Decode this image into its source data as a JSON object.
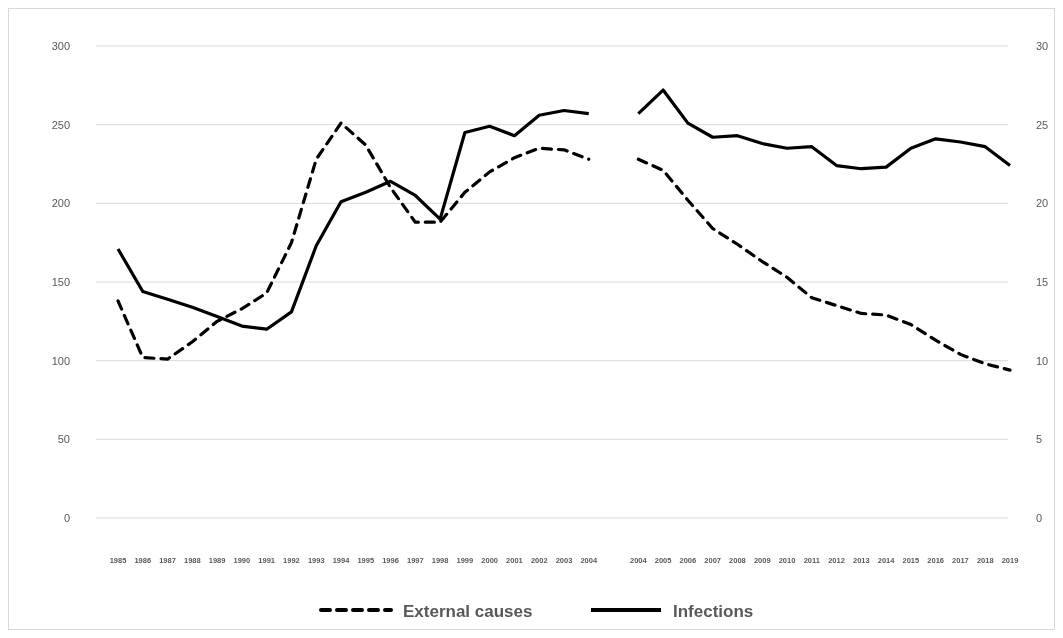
{
  "chart_data": {
    "type": "line",
    "categories": [
      "1985",
      "1986",
      "1987",
      "1988",
      "1989",
      "1990",
      "1991",
      "1992",
      "1993",
      "1994",
      "1995",
      "1996",
      "1997",
      "1998",
      "1999",
      "2000",
      "2001",
      "2002",
      "2003",
      "2004",
      null,
      "2004",
      "2005",
      "2006",
      "2007",
      "2008",
      "2009",
      "2010",
      "2011",
      "2012",
      "2013",
      "2014",
      "2015",
      "2016",
      "2017",
      "2018",
      "2019"
    ],
    "series": [
      {
        "name": "External causes",
        "color": "#000000",
        "line_style": "dashed",
        "values": [
          138,
          102,
          101,
          112,
          125,
          133,
          143,
          175,
          228,
          251,
          237,
          210,
          188,
          188,
          207,
          220,
          229,
          235,
          234,
          228,
          null,
          228,
          221,
          202,
          184,
          174,
          163,
          153,
          140,
          135,
          130,
          129,
          123,
          113,
          104,
          98,
          94
        ]
      },
      {
        "name": "Infections",
        "color": "#000000",
        "line_style": "solid",
        "axis": "y2",
        "values": [
          17.1,
          14.4,
          13.9,
          13.4,
          12.8,
          12.2,
          12.0,
          13.1,
          17.3,
          20.1,
          20.7,
          21.4,
          20.5,
          19.0,
          24.5,
          24.9,
          24.3,
          25.6,
          25.9,
          25.7,
          null,
          25.7,
          27.2,
          25.1,
          24.2,
          24.3,
          23.8,
          23.5,
          23.6,
          22.4,
          22.2,
          22.3,
          23.5,
          24.1,
          23.9,
          23.6,
          22.4
        ]
      }
    ],
    "ylim": [
      0,
      300
    ],
    "yticks": [
      0,
      50,
      100,
      150,
      200,
      250,
      300
    ],
    "y2lim": [
      0,
      30
    ],
    "y2ticks": [
      0,
      5,
      10,
      15,
      20,
      25,
      30
    ],
    "grid": "y",
    "legend": "bottom"
  }
}
